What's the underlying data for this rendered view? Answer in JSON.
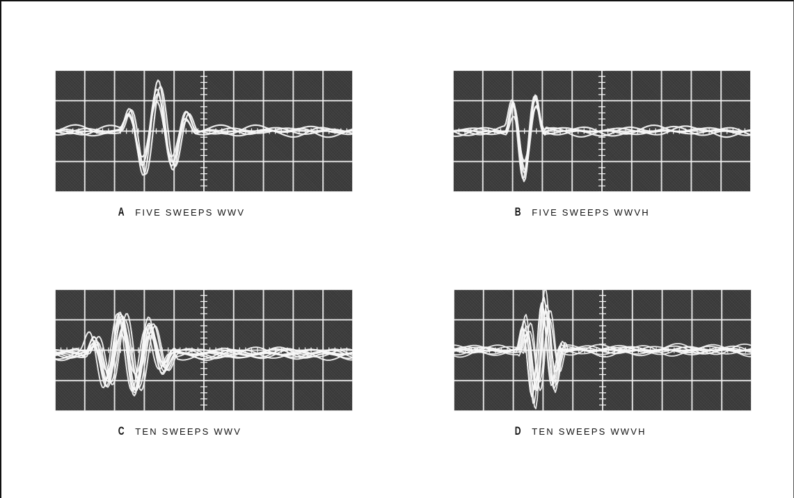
{
  "figure": {
    "panels": [
      {
        "id": "a",
        "letter": "A",
        "caption": "FIVE SWEEPS WWV"
      },
      {
        "id": "b",
        "letter": "B",
        "caption": "FIVE SWEEPS WWVH"
      },
      {
        "id": "c",
        "letter": "C",
        "caption": "TEN SWEEPS WWV"
      },
      {
        "id": "d",
        "letter": "D",
        "caption": "TEN SWEEPS WWVH"
      }
    ]
  },
  "colors": {
    "screen_background": "#3c3c3c",
    "graticule": "#f2f2f2",
    "trace": "#f7f7f7",
    "text": "#111111"
  }
}
